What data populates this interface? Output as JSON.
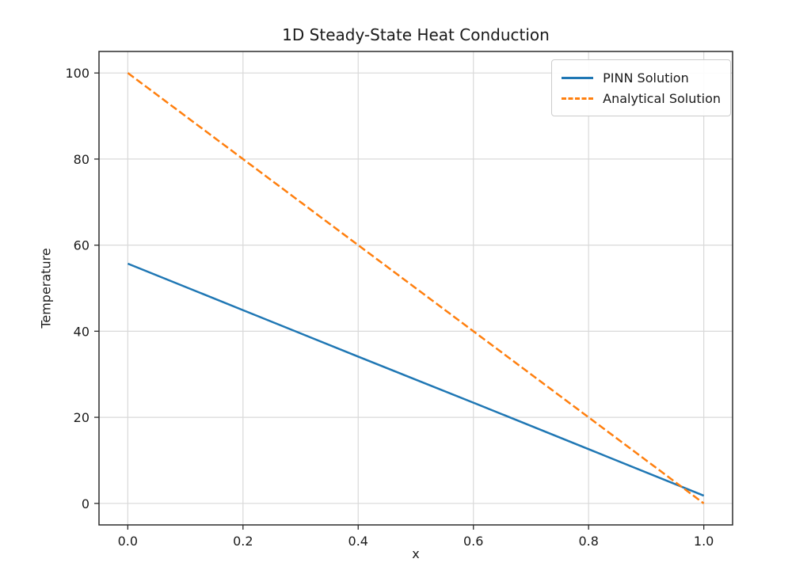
{
  "chart_data": {
    "type": "line",
    "title": "1D Steady-State Heat Conduction",
    "xlabel": "x",
    "ylabel": "Temperature",
    "x": [
      0.0,
      0.2,
      0.4,
      0.6,
      0.8,
      1.0
    ],
    "series": [
      {
        "name": "PINN Solution",
        "color": "#1f77b4",
        "style": "solid",
        "values": [
          55.7,
          44.9,
          34.1,
          23.4,
          12.6,
          1.8
        ]
      },
      {
        "name": "Analytical Solution",
        "color": "#ff7f0e",
        "style": "dashed",
        "values": [
          100,
          80,
          60,
          40,
          20,
          0
        ]
      }
    ],
    "xticks": [
      0.0,
      0.2,
      0.4,
      0.6,
      0.8,
      1.0
    ],
    "xtick_labels": [
      "0.0",
      "0.2",
      "0.4",
      "0.6",
      "0.8",
      "1.0"
    ],
    "yticks": [
      0,
      20,
      40,
      60,
      80,
      100
    ],
    "ytick_labels": [
      "0",
      "20",
      "40",
      "60",
      "80",
      "100"
    ],
    "xlim": [
      -0.05,
      1.05
    ],
    "ylim": [
      -5,
      105
    ],
    "grid": true,
    "grid_color": "#d9d9d9",
    "spine_color": "#2b2b2b",
    "text_color": "#1a1a1a",
    "legend_position": "upper right"
  }
}
